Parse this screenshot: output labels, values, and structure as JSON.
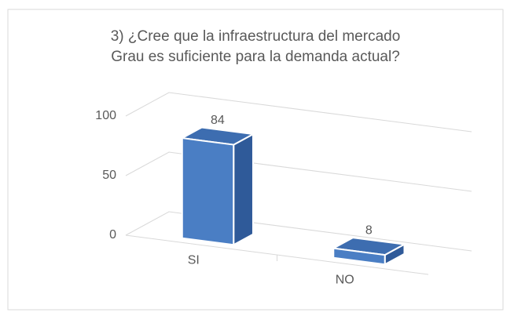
{
  "chart_data": {
    "type": "bar3d",
    "title": [
      "3) ¿Cree que la infraestructura del mercado",
      "Grau es suficiente para la demanda actual?"
    ],
    "categories": [
      "SI",
      "NO"
    ],
    "values": [
      84,
      8
    ],
    "color": "#4a7ec4",
    "ylim": [
      0,
      100
    ],
    "yticks": [
      0,
      50,
      100
    ],
    "grid": true
  }
}
